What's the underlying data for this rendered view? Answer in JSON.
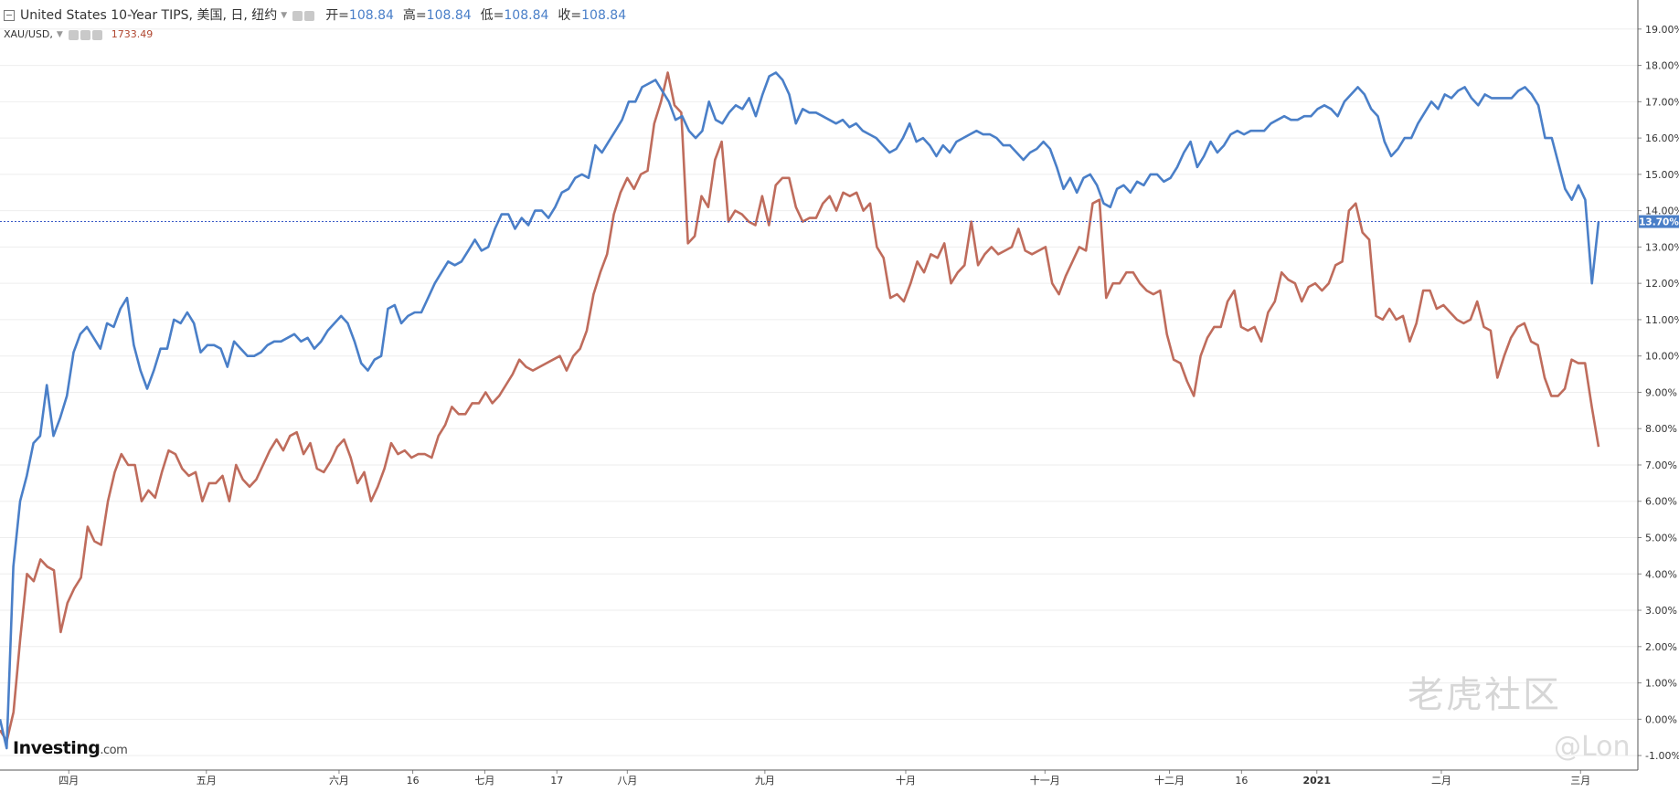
{
  "header": {
    "instrument": "United States 10-Year TIPS, 美国, 日, 纽约",
    "open_label": "开=",
    "open": "108.84",
    "high_label": "高=",
    "high": "108.84",
    "low_label": "低=",
    "low": "108.84",
    "close_label": "收=",
    "close": "108.84",
    "secondary_symbol": "XAU/USD,",
    "secondary_value": "1733.49"
  },
  "branding": {
    "logo_main": "Investing",
    "logo_suffix": ".com"
  },
  "watermark": {
    "text": "老虎社区",
    "user": "@Lon"
  },
  "colors": {
    "tips": "#4a7fc8",
    "gold": "#bf6c5c",
    "grid": "#eeeeee",
    "current_line": "#3b5bc7"
  },
  "chart_data": {
    "type": "line",
    "title": "",
    "xlabel": "",
    "ylabel": "",
    "ylim": [
      -1.4,
      19.8
    ],
    "x_ticks": [
      "四月",
      "五月",
      "六月",
      "16",
      "七月",
      "17",
      "八月",
      "九月",
      "十月",
      "十一月",
      "十二月",
      "16",
      "2021",
      "二月",
      "三月"
    ],
    "y_ticks": [
      "19.00%",
      "18.00%",
      "17.00%",
      "16.00%",
      "15.00%",
      "14.00%",
      "13.00%",
      "12.00%",
      "11.00%",
      "10.00%",
      "9.00%",
      "8.00%",
      "7.00%",
      "6.00%",
      "5.00%",
      "4.00%",
      "3.00%",
      "2.00%",
      "1.00%",
      "0.00%",
      "-1.00%"
    ],
    "current_value_label": "13.70%",
    "current_value": 13.7,
    "series": [
      {
        "values": [
          0.0,
          -0.8,
          4.2,
          6.0,
          6.7,
          7.6,
          7.8,
          9.2,
          7.8,
          8.3,
          8.9,
          10.1,
          10.6,
          10.8,
          10.5,
          10.2,
          10.9,
          10.8,
          11.3,
          11.6,
          10.3,
          9.6,
          9.1,
          9.6,
          10.2,
          10.2,
          11.0,
          10.9,
          11.2,
          10.9,
          10.1,
          10.3,
          10.3,
          10.2,
          9.7,
          10.4,
          10.2,
          10.0,
          10.0,
          10.1,
          10.3,
          10.4,
          10.4,
          10.5,
          10.6,
          10.4,
          10.5,
          10.2,
          10.4,
          10.7,
          10.9,
          11.1,
          10.9,
          10.4,
          9.8,
          9.6,
          9.9,
          10.0,
          11.3,
          11.4,
          10.9,
          11.1,
          11.2,
          11.2,
          11.6,
          12.0,
          12.3,
          12.6,
          12.5,
          12.6,
          12.9,
          13.2,
          12.9,
          13.0,
          13.5,
          13.9,
          13.9,
          13.5,
          13.8,
          13.6,
          14.0,
          14.0,
          13.8,
          14.1,
          14.5,
          14.6,
          14.9,
          15.0,
          14.9,
          15.8,
          15.6,
          15.9,
          16.2,
          16.5,
          17.0,
          17.0,
          17.4,
          17.5,
          17.6,
          17.3,
          17.0,
          16.5,
          16.6,
          16.2,
          16.0,
          16.2,
          17.0,
          16.5,
          16.4,
          16.7,
          16.9,
          16.8,
          17.1,
          16.6,
          17.2,
          17.7,
          17.8,
          17.6,
          17.2,
          16.4,
          16.8,
          16.7,
          16.7,
          16.6,
          16.5,
          16.4,
          16.5,
          16.3,
          16.4,
          16.2,
          16.1,
          16.0,
          15.8,
          15.6,
          15.7,
          16.0,
          16.4,
          15.9,
          16.0,
          15.8,
          15.5,
          15.8,
          15.6,
          15.9,
          16.0,
          16.1,
          16.2,
          16.1,
          16.1,
          16.0,
          15.8,
          15.8,
          15.6,
          15.4,
          15.6,
          15.7,
          15.9,
          15.7,
          15.2,
          14.6,
          14.9,
          14.5,
          14.9,
          15.0,
          14.7,
          14.2,
          14.1,
          14.6,
          14.7,
          14.5,
          14.8,
          14.7,
          15.0,
          15.0,
          14.8,
          14.9,
          15.2,
          15.6,
          15.9,
          15.2,
          15.5,
          15.9,
          15.6,
          15.8,
          16.1,
          16.2,
          16.1,
          16.2,
          16.2,
          16.2,
          16.4,
          16.5,
          16.6,
          16.5,
          16.5,
          16.6,
          16.6,
          16.8,
          16.9,
          16.8,
          16.6,
          17.0,
          17.2,
          17.4,
          17.2,
          16.8,
          16.6,
          15.9,
          15.5,
          15.7,
          16.0,
          16.0,
          16.4,
          16.7,
          17.0,
          16.8,
          17.2,
          17.1,
          17.3,
          17.4,
          17.1,
          16.9,
          17.2,
          17.1,
          17.1,
          17.1,
          17.1,
          17.3,
          17.4,
          17.2,
          16.9,
          16.0,
          16.0,
          15.3,
          14.6,
          14.3,
          14.7,
          14.3,
          12.0,
          13.7
        ]
      },
      {
        "values": [
          -0.3,
          -0.6,
          0.2,
          2.2,
          4.0,
          3.8,
          4.4,
          4.2,
          4.1,
          2.4,
          3.2,
          3.6,
          3.9,
          5.3,
          4.9,
          4.8,
          6.0,
          6.8,
          7.3,
          7.0,
          7.0,
          6.0,
          6.3,
          6.1,
          6.8,
          7.4,
          7.3,
          6.9,
          6.7,
          6.8,
          6.0,
          6.5,
          6.5,
          6.7,
          6.0,
          7.0,
          6.6,
          6.4,
          6.6,
          7.0,
          7.4,
          7.7,
          7.4,
          7.8,
          7.9,
          7.3,
          7.6,
          6.9,
          6.8,
          7.1,
          7.5,
          7.7,
          7.2,
          6.5,
          6.8,
          6.0,
          6.4,
          6.9,
          7.6,
          7.3,
          7.4,
          7.2,
          7.3,
          7.3,
          7.2,
          7.8,
          8.1,
          8.6,
          8.4,
          8.4,
          8.7,
          8.7,
          9.0,
          8.7,
          8.9,
          9.2,
          9.5,
          9.9,
          9.7,
          9.6,
          9.7,
          9.8,
          9.9,
          10.0,
          9.6,
          10.0,
          10.2,
          10.7,
          11.7,
          12.3,
          12.8,
          13.9,
          14.5,
          14.9,
          14.6,
          15.0,
          15.1,
          16.4,
          17.0,
          17.8,
          16.9,
          16.7,
          13.1,
          13.3,
          14.4,
          14.1,
          15.4,
          15.9,
          13.7,
          14.0,
          13.9,
          13.7,
          13.6,
          14.4,
          13.6,
          14.7,
          14.9,
          14.9,
          14.1,
          13.7,
          13.8,
          13.8,
          14.2,
          14.4,
          14.0,
          14.5,
          14.4,
          14.5,
          14.0,
          14.2,
          13.0,
          12.7,
          11.6,
          11.7,
          11.5,
          12.0,
          12.6,
          12.3,
          12.8,
          12.7,
          13.1,
          12.0,
          12.3,
          12.5,
          13.7,
          12.5,
          12.8,
          13.0,
          12.8,
          12.9,
          13.0,
          13.5,
          12.9,
          12.8,
          12.9,
          13.0,
          12.0,
          11.7,
          12.2,
          12.6,
          13.0,
          12.9,
          14.2,
          14.3,
          11.6,
          12.0,
          12.0,
          12.3,
          12.3,
          12.0,
          11.8,
          11.7,
          11.8,
          10.6,
          9.9,
          9.8,
          9.3,
          8.9,
          10.0,
          10.5,
          10.8,
          10.8,
          11.5,
          11.8,
          10.8,
          10.7,
          10.8,
          10.4,
          11.2,
          11.5,
          12.3,
          12.1,
          12.0,
          11.5,
          11.9,
          12.0,
          11.8,
          12.0,
          12.5,
          12.6,
          14.0,
          14.2,
          13.4,
          13.2,
          11.1,
          11.0,
          11.3,
          11.0,
          11.1,
          10.4,
          10.9,
          11.8,
          11.8,
          11.3,
          11.4,
          11.2,
          11.0,
          10.9,
          11.0,
          11.5,
          10.8,
          10.7,
          9.4,
          10.0,
          10.5,
          10.8,
          10.9,
          10.4,
          10.3,
          9.4,
          8.9,
          8.9,
          9.1,
          9.9,
          9.8,
          9.8,
          8.6,
          7.5
        ]
      }
    ]
  }
}
